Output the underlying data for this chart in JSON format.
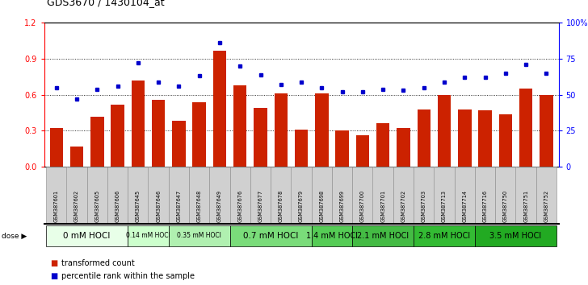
{
  "title": "GDS3670 / 1430104_at",
  "samples": [
    "GSM387601",
    "GSM387602",
    "GSM387605",
    "GSM387606",
    "GSM387645",
    "GSM387646",
    "GSM387647",
    "GSM387648",
    "GSM387649",
    "GSM387676",
    "GSM387677",
    "GSM387678",
    "GSM387679",
    "GSM387698",
    "GSM387699",
    "GSM387700",
    "GSM387701",
    "GSM387702",
    "GSM387703",
    "GSM387713",
    "GSM387714",
    "GSM387716",
    "GSM387750",
    "GSM387751",
    "GSM387752"
  ],
  "bar_values": [
    0.32,
    0.17,
    0.42,
    0.52,
    0.72,
    0.56,
    0.38,
    0.54,
    0.97,
    0.68,
    0.49,
    0.61,
    0.31,
    0.61,
    0.3,
    0.26,
    0.36,
    0.32,
    0.48,
    0.6,
    0.48,
    0.47,
    0.44,
    0.65,
    0.6
  ],
  "dot_values": [
    55,
    47,
    54,
    56,
    72,
    59,
    56,
    63,
    86,
    70,
    64,
    57,
    59,
    55,
    52,
    52,
    54,
    53,
    55,
    59,
    62,
    62,
    65,
    71,
    65
  ],
  "dose_groups": [
    {
      "label": "0 mM HOCl",
      "start": 0,
      "end": 4,
      "color": "#e8ffe8",
      "font_size": 7.5
    },
    {
      "label": "0.14 mM HOCl",
      "start": 4,
      "end": 6,
      "color": "#ccffcc",
      "font_size": 5.5
    },
    {
      "label": "0.35 mM HOCl",
      "start": 6,
      "end": 9,
      "color": "#b0f0b0",
      "font_size": 5.5
    },
    {
      "label": "0.7 mM HOCl",
      "start": 9,
      "end": 13,
      "color": "#7adc7a",
      "font_size": 7.5
    },
    {
      "label": "1.4 mM HOCl",
      "start": 13,
      "end": 15,
      "color": "#55cc55",
      "font_size": 7
    },
    {
      "label": "2.1 mM HOCl",
      "start": 15,
      "end": 18,
      "color": "#44bb44",
      "font_size": 7
    },
    {
      "label": "2.8 mM HOCl",
      "start": 18,
      "end": 21,
      "color": "#33bb33",
      "font_size": 7
    },
    {
      "label": "3.5 mM HOCl",
      "start": 21,
      "end": 25,
      "color": "#22aa22",
      "font_size": 7
    }
  ],
  "bar_color": "#cc2200",
  "dot_color": "#0000cc",
  "ylim_left": [
    0,
    1.2
  ],
  "ylim_right": [
    0,
    100
  ],
  "yticks_left": [
    0,
    0.3,
    0.6,
    0.9,
    1.2
  ],
  "yticks_right": [
    0,
    25,
    50,
    75,
    100
  ],
  "ylabel_right_labels": [
    "0",
    "25",
    "50",
    "75",
    "100%"
  ],
  "background_color": "#ffffff",
  "plot_bg_color": "#ffffff"
}
